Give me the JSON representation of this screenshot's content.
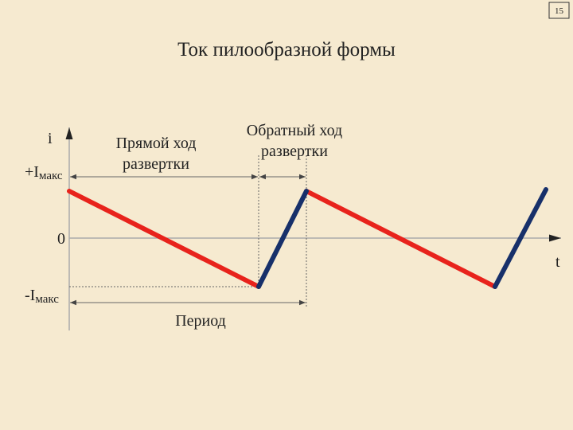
{
  "page_number": "15",
  "title": "Ток пилообразной формы",
  "axes": {
    "y_label": "i",
    "x_label": "t",
    "levels": [
      {
        "label": "+I",
        "sub": "макс"
      },
      {
        "label": "0"
      },
      {
        "label": "-I",
        "sub": "макс"
      }
    ]
  },
  "annotations": {
    "forward_sweep": [
      "Прямой ход",
      "развертки"
    ],
    "return_sweep": [
      "Обратный ход",
      "развертки"
    ],
    "period": "Период"
  }
}
